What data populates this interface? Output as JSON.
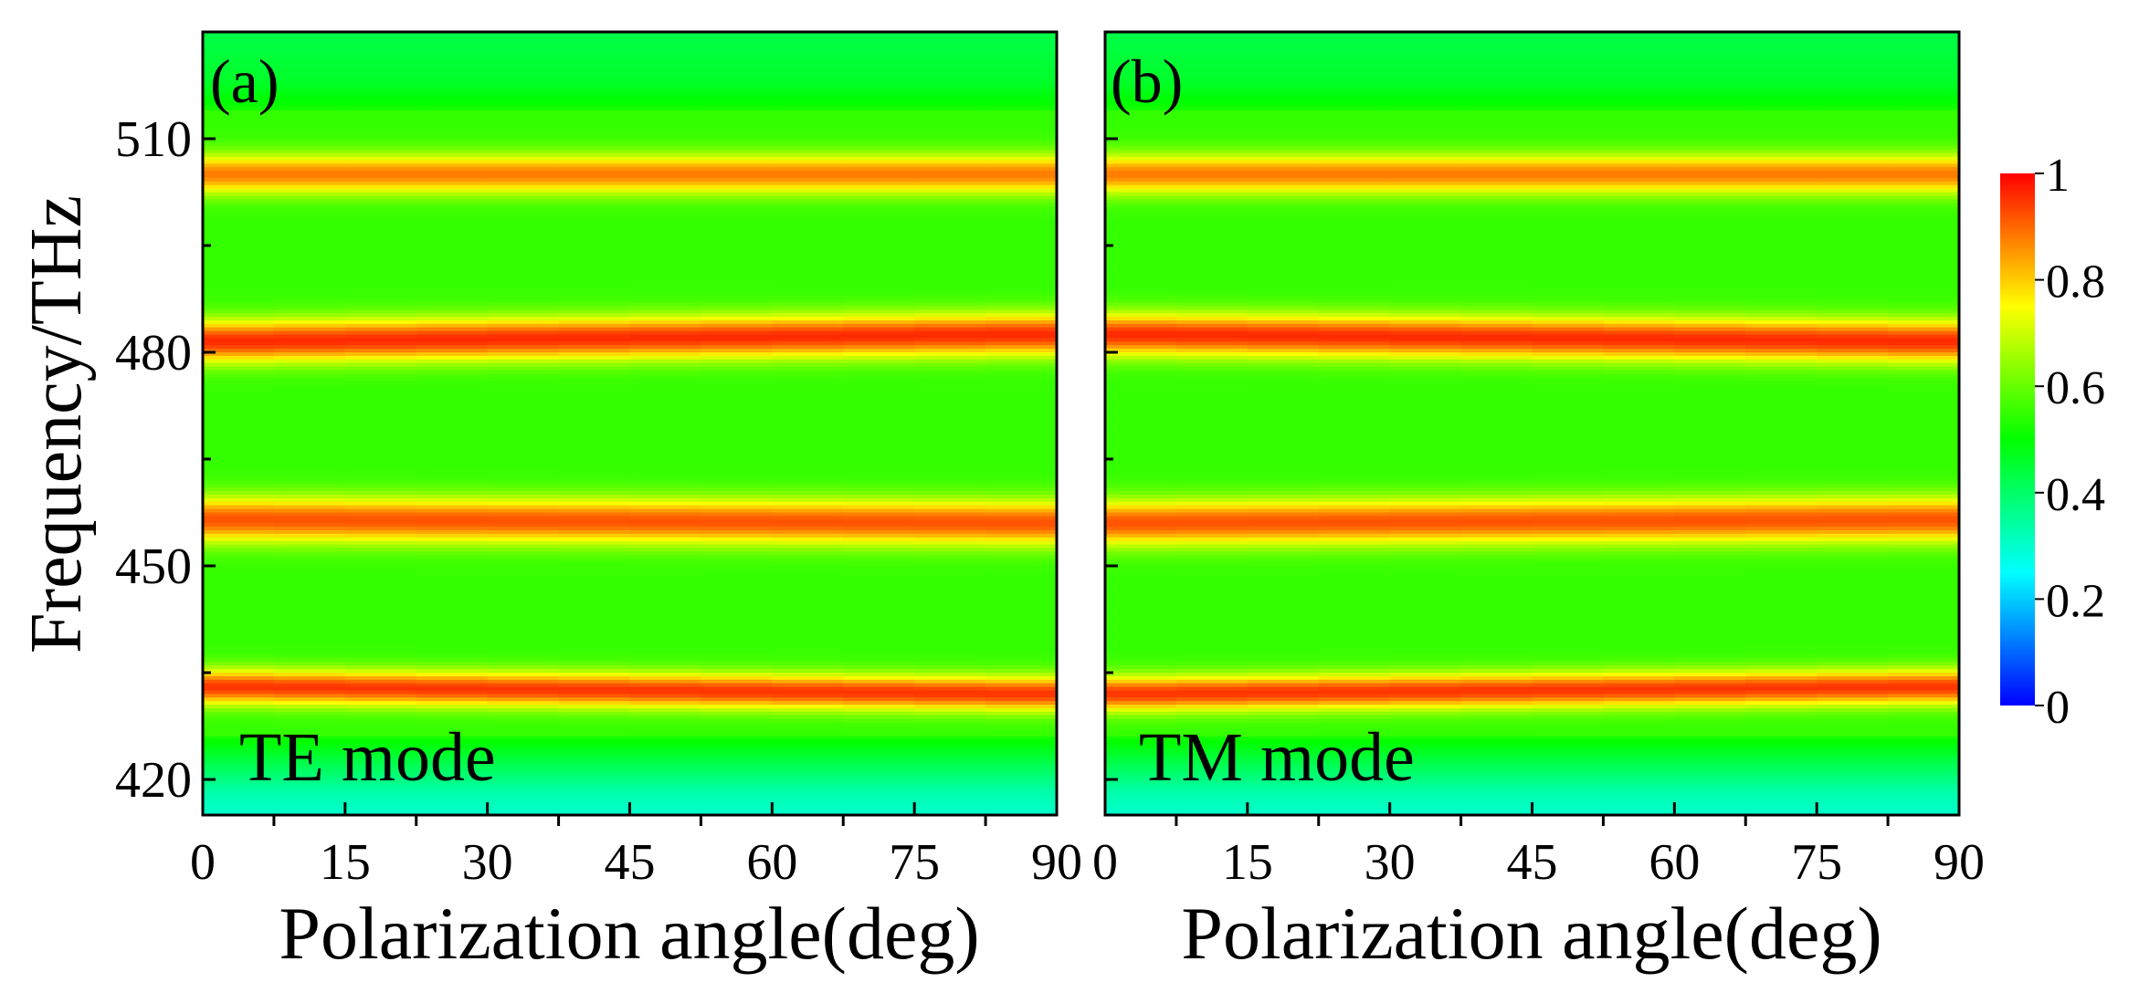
{
  "figure": {
    "ylabel": "Frequency/THz",
    "colorbar": {
      "ticks": [
        "1",
        "0.8",
        "0.6",
        "0.4",
        "0.2",
        "0"
      ],
      "range": [
        0,
        1
      ]
    }
  },
  "chart_data": [
    {
      "type": "heatmap",
      "panel_label": "(a)",
      "mode_label": "TE mode",
      "title": "",
      "xlabel": "Polarization angle(deg)",
      "ylabel": "Frequency/THz",
      "xlim": [
        0,
        90
      ],
      "ylim": [
        415,
        525
      ],
      "xticks": [
        "0",
        "15",
        "30",
        "45",
        "60",
        "75",
        "90"
      ],
      "yticks": [
        "510",
        "480",
        "450",
        "420"
      ],
      "colorscale": "jet",
      "zlim": [
        0,
        1
      ],
      "background_value": 0.55,
      "peaks": [
        {
          "center_at_0": 505.0,
          "center_at_90": 505.0,
          "value": 0.88,
          "width_thz": 2.8
        },
        {
          "center_at_0": 481.5,
          "center_at_90": 482.5,
          "value": 0.96,
          "width_thz": 3.0
        },
        {
          "center_at_0": 456.5,
          "center_at_90": 456.0,
          "value": 0.92,
          "width_thz": 3.2
        },
        {
          "center_at_0": 433.0,
          "center_at_90": 432.0,
          "value": 0.95,
          "width_thz": 2.5
        }
      ],
      "low_frequency_edge": [
        {
          "freq": 415,
          "value": 0.3
        },
        {
          "freq": 418,
          "value": 0.33
        },
        {
          "freq": 422,
          "value": 0.42
        },
        {
          "freq": 426,
          "value": 0.52
        }
      ],
      "high_frequency_edge": [
        {
          "freq": 514,
          "value": 0.52
        },
        {
          "freq": 518,
          "value": 0.46
        },
        {
          "freq": 525,
          "value": 0.43
        }
      ]
    },
    {
      "type": "heatmap",
      "panel_label": "(b)",
      "mode_label": "TM mode",
      "title": "",
      "xlabel": "Polarization angle(deg)",
      "ylabel": "",
      "xlim": [
        0,
        90
      ],
      "ylim": [
        415,
        525
      ],
      "xticks": [
        "0",
        "15",
        "30",
        "45",
        "60",
        "75",
        "90"
      ],
      "yticks": [],
      "colorscale": "jet",
      "zlim": [
        0,
        1
      ],
      "background_value": 0.55,
      "peaks": [
        {
          "center_at_0": 505.0,
          "center_at_90": 505.0,
          "value": 0.88,
          "width_thz": 2.8
        },
        {
          "center_at_0": 482.5,
          "center_at_90": 481.5,
          "value": 0.96,
          "width_thz": 3.0
        },
        {
          "center_at_0": 456.0,
          "center_at_90": 456.5,
          "value": 0.92,
          "width_thz": 3.2
        },
        {
          "center_at_0": 432.0,
          "center_at_90": 433.0,
          "value": 0.95,
          "width_thz": 2.5
        }
      ],
      "low_frequency_edge": [
        {
          "freq": 415,
          "value": 0.3
        },
        {
          "freq": 418,
          "value": 0.33
        },
        {
          "freq": 422,
          "value": 0.42
        },
        {
          "freq": 426,
          "value": 0.52
        }
      ],
      "high_frequency_edge": [
        {
          "freq": 514,
          "value": 0.52
        },
        {
          "freq": 518,
          "value": 0.46
        },
        {
          "freq": 525,
          "value": 0.43
        }
      ]
    }
  ]
}
